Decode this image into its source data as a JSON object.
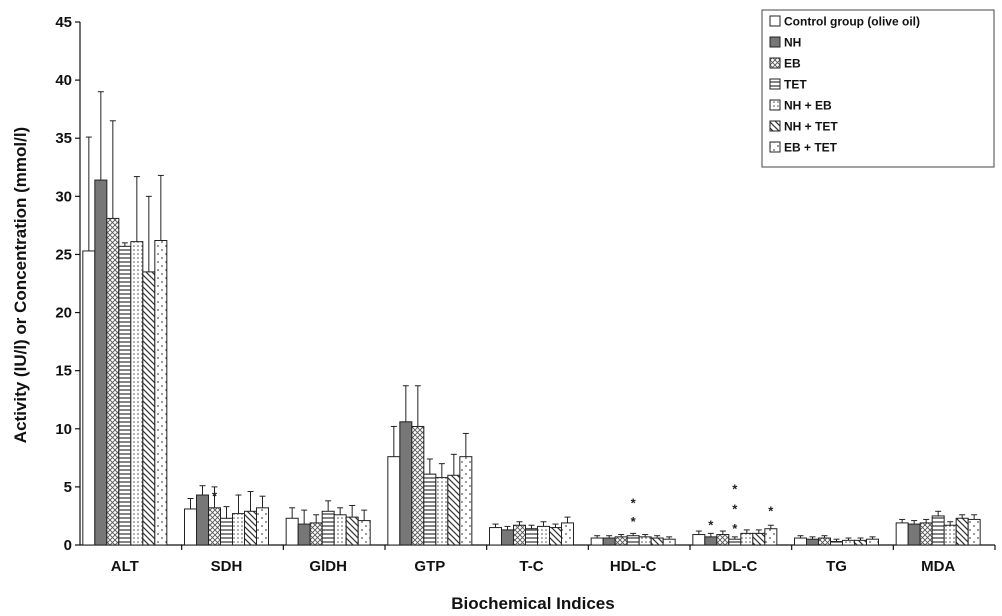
{
  "chart_data": {
    "type": "bar",
    "title": "",
    "xlabel": "Biochemical Indices",
    "ylabel": "Activity (IU/l) or Concentration (mmol/l)",
    "ylim": [
      0,
      45
    ],
    "yticks": [
      "0",
      "5",
      "10",
      "15",
      "20",
      "25",
      "30",
      "35",
      "40",
      "45"
    ],
    "grid": false,
    "legend_position": "top-right",
    "categories": [
      "ALT",
      "SDH",
      "GlDH",
      "GTP",
      "T-C",
      "HDL-C",
      "LDL-C",
      "TG",
      "MDA"
    ],
    "series": [
      {
        "name": "Control group (olive oil)",
        "pattern": "white",
        "values": [
          25.3,
          3.1,
          2.3,
          7.6,
          1.5,
          0.6,
          0.9,
          0.6,
          1.9
        ],
        "errors": [
          9.8,
          0.9,
          0.9,
          2.6,
          0.3,
          0.2,
          0.3,
          0.2,
          0.3
        ]
      },
      {
        "name": "NH",
        "pattern": "dark",
        "values": [
          31.4,
          4.3,
          1.8,
          10.6,
          1.3,
          0.6,
          0.7,
          0.5,
          1.8
        ],
        "errors": [
          7.6,
          0.8,
          1.2,
          3.1,
          0.3,
          0.2,
          0.3,
          0.2,
          0.3
        ]
      },
      {
        "name": "EB",
        "pattern": "crosshatch",
        "values": [
          28.1,
          3.2,
          1.9,
          10.2,
          1.7,
          0.7,
          0.9,
          0.6,
          1.9
        ],
        "errors": [
          8.4,
          1.8,
          0.7,
          3.5,
          0.3,
          0.2,
          0.3,
          0.2,
          0.3
        ]
      },
      {
        "name": "TET",
        "pattern": "horizontal",
        "values": [
          25.7,
          2.3,
          2.9,
          6.1,
          1.4,
          0.8,
          0.5,
          0.3,
          2.5
        ],
        "errors": [
          0.3,
          1.0,
          0.9,
          1.3,
          0.3,
          0.2,
          0.2,
          0.2,
          0.4
        ]
      },
      {
        "name": "NH + EB",
        "pattern": "dots",
        "values": [
          26.1,
          2.7,
          2.6,
          5.8,
          1.6,
          0.7,
          1.0,
          0.4,
          1.7
        ],
        "errors": [
          5.6,
          1.6,
          0.6,
          1.2,
          0.4,
          0.2,
          0.3,
          0.2,
          0.3
        ]
      },
      {
        "name": "NH + TET",
        "pattern": "diagonal",
        "values": [
          23.5,
          2.9,
          2.4,
          6.0,
          1.5,
          0.6,
          1.0,
          0.4,
          2.3
        ],
        "errors": [
          6.5,
          1.7,
          1.0,
          1.8,
          0.3,
          0.2,
          0.3,
          0.2,
          0.3
        ]
      },
      {
        "name": "EB + TET",
        "pattern": "sparsedots",
        "values": [
          26.2,
          3.2,
          2.1,
          7.6,
          1.9,
          0.5,
          1.4,
          0.5,
          2.2
        ],
        "errors": [
          5.6,
          1.0,
          0.9,
          2.0,
          0.5,
          0.2,
          0.3,
          0.2,
          0.4
        ]
      }
    ],
    "annotations": [
      {
        "text": "*",
        "category": "SDH",
        "series": "EB",
        "y": 4.6
      },
      {
        "text": "*",
        "category": "HDL-C",
        "series": "TET",
        "y": 4.0
      },
      {
        "text": "*",
        "category": "HDL-C",
        "series": "TET",
        "y": 2.4
      },
      {
        "text": "*",
        "category": "LDL-C",
        "series": "NH",
        "y": 2.1
      },
      {
        "text": "*",
        "category": "LDL-C",
        "series": "TET",
        "y": 5.2
      },
      {
        "text": "*",
        "category": "LDL-C",
        "series": "TET",
        "y": 3.5
      },
      {
        "text": "*",
        "category": "LDL-C",
        "series": "TET",
        "y": 1.8
      },
      {
        "text": "*",
        "category": "LDL-C",
        "series": "EB + TET",
        "y": 3.3
      }
    ]
  }
}
